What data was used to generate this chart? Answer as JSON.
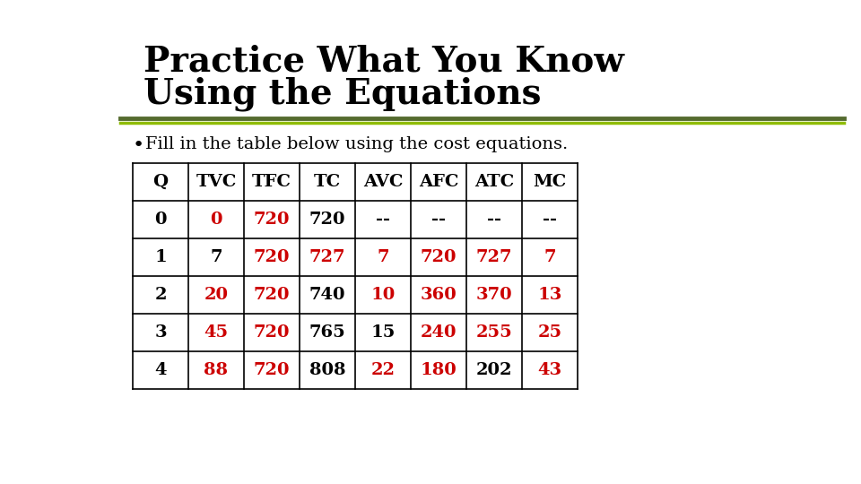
{
  "title_line1": "Practice What You Know",
  "title_line2": "Using the Equations",
  "bullet_text": "Fill in the table below using the cost equations.",
  "title_color": "#000000",
  "title_fontsize": 28,
  "bullet_fontsize": 14,
  "background_color": "#ffffff",
  "divider_color_top": "#556b2f",
  "divider_color_bottom": "#8b9a2e",
  "table_headers": [
    "Q",
    "TVC",
    "TFC",
    "TC",
    "AVC",
    "AFC",
    "ATC",
    "MC"
  ],
  "table_rows": [
    [
      "0",
      "0",
      "720",
      "720",
      "--",
      "--",
      "--",
      "--"
    ],
    [
      "1",
      "7",
      "720",
      "727",
      "7",
      "720",
      "727",
      "7"
    ],
    [
      "2",
      "20",
      "720",
      "740",
      "10",
      "360",
      "370",
      "13"
    ],
    [
      "3",
      "45",
      "720",
      "765",
      "15",
      "240",
      "255",
      "25"
    ],
    [
      "4",
      "88",
      "720",
      "808",
      "22",
      "180",
      "202",
      "43"
    ]
  ],
  "cell_colors": [
    [
      "#000000",
      "#cc0000",
      "#cc0000",
      "#000000",
      "#000000",
      "#000000",
      "#000000",
      "#000000"
    ],
    [
      "#000000",
      "#000000",
      "#cc0000",
      "#cc0000",
      "#cc0000",
      "#cc0000",
      "#cc0000",
      "#cc0000"
    ],
    [
      "#000000",
      "#cc0000",
      "#cc0000",
      "#000000",
      "#cc0000",
      "#cc0000",
      "#cc0000",
      "#cc0000"
    ],
    [
      "#000000",
      "#cc0000",
      "#cc0000",
      "#000000",
      "#000000",
      "#cc0000",
      "#cc0000",
      "#cc0000"
    ],
    [
      "#000000",
      "#cc0000",
      "#cc0000",
      "#000000",
      "#cc0000",
      "#cc0000",
      "#000000",
      "#cc0000"
    ]
  ],
  "header_color": "#000000",
  "table_fontsize": 13
}
